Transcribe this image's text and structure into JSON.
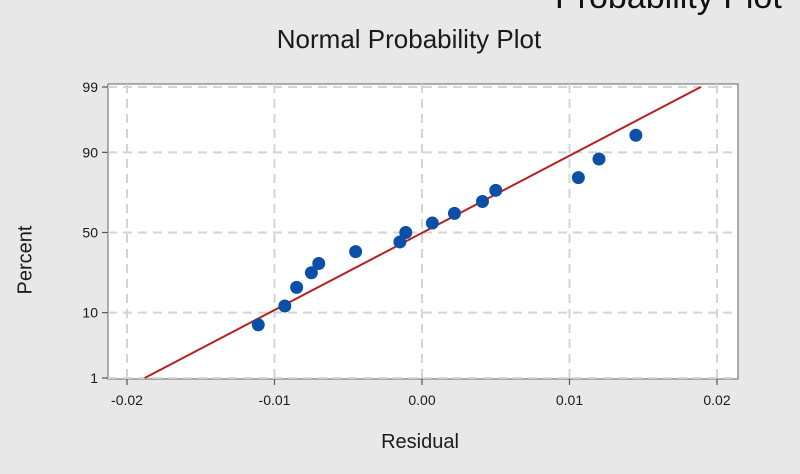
{
  "header": {
    "cut_off_title": "Probability Plot"
  },
  "chart_data": {
    "type": "scatter",
    "title": "Normal Probability Plot",
    "xlabel": "Residual",
    "ylabel": "Percent",
    "xlim": [
      -0.02,
      0.02
    ],
    "y_scale": "normal-probability",
    "yticks": [
      1,
      10,
      50,
      90,
      99
    ],
    "ytick_labels": [
      "1",
      "10",
      "50",
      "90",
      "99"
    ],
    "xticks": [
      -0.02,
      -0.01,
      0.0,
      0.01,
      0.02
    ],
    "xtick_labels": [
      "-0.02",
      "-0.01",
      "0.00",
      "0.01",
      "0.02"
    ],
    "grid": true,
    "point_color": "#0b4fa8",
    "fit_line_color": "#b22222",
    "fit_line": [
      {
        "x": -0.0188,
        "y": 1
      },
      {
        "x": 0.0189,
        "y": 99
      }
    ],
    "points": [
      {
        "x": -0.0111,
        "y": 7
      },
      {
        "x": -0.0093,
        "y": 12
      },
      {
        "x": -0.0085,
        "y": 19
      },
      {
        "x": -0.0075,
        "y": 26
      },
      {
        "x": -0.007,
        "y": 31
      },
      {
        "x": -0.0045,
        "y": 38
      },
      {
        "x": -0.0015,
        "y": 44
      },
      {
        "x": -0.0011,
        "y": 50
      },
      {
        "x": 0.0007,
        "y": 56
      },
      {
        "x": 0.0022,
        "y": 62
      },
      {
        "x": 0.0041,
        "y": 69
      },
      {
        "x": 0.005,
        "y": 75
      },
      {
        "x": 0.0106,
        "y": 81
      },
      {
        "x": 0.012,
        "y": 88
      },
      {
        "x": 0.0145,
        "y": 94
      }
    ]
  }
}
